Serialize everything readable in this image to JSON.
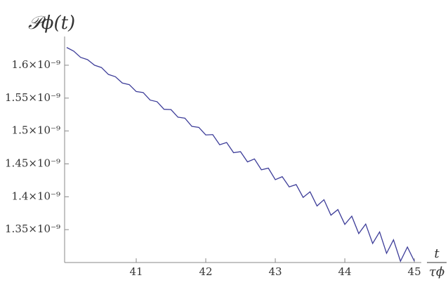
{
  "chart_data": {
    "type": "line",
    "y_label": "𝒫ϕ(t)",
    "x_label": {
      "numerator": "t",
      "denominator": "τϕ"
    },
    "x": [
      40,
      40.1,
      40.2,
      40.3,
      40.4,
      40.5,
      40.6,
      40.7,
      40.8,
      40.9,
      41,
      41.1,
      41.2,
      41.3,
      41.4,
      41.5,
      41.6,
      41.7,
      41.8,
      41.9,
      42,
      42.1,
      42.2,
      42.3,
      42.4,
      42.5,
      42.6,
      42.7,
      42.8,
      42.9,
      43,
      43.1,
      43.2,
      43.3,
      43.4,
      43.5,
      43.6,
      43.7,
      43.8,
      43.9,
      44,
      44.1,
      44.2,
      44.3,
      44.4,
      44.5,
      44.6,
      44.7,
      44.8,
      44.9,
      45
    ],
    "series": [
      {
        "color": "#3d3d99",
        "values": [
          1.627e-09,
          1.6215e-09,
          1.612e-09,
          1.6085e-09,
          1.6e-09,
          1.5965e-09,
          1.586e-09,
          1.5825e-09,
          1.573e-09,
          1.5705e-09,
          1.56e-09,
          1.5585e-09,
          1.547e-09,
          1.5445e-09,
          1.533e-09,
          1.5325e-09,
          1.521e-09,
          1.5195e-09,
          1.507e-09,
          1.5055e-09,
          1.494e-09,
          1.4945e-09,
          1.479e-09,
          1.4825e-09,
          1.467e-09,
          1.4685e-09,
          1.453e-09,
          1.4575e-09,
          1.441e-09,
          1.4435e-09,
          1.426e-09,
          1.4305e-09,
          1.415e-09,
          1.4185e-09,
          1.399e-09,
          1.4075e-09,
          1.386e-09,
          1.3955e-09,
          1.372e-09,
          1.3805e-09,
          1.358e-09,
          1.3705e-09,
          1.344e-09,
          1.3585e-09,
          1.329e-09,
          1.3465e-09,
          1.314e-09,
          1.3345e-09,
          1.302e-09,
          1.3235e-09,
          1.302e-09
        ]
      }
    ],
    "xlim": [
      39.97,
      45.1
    ],
    "ylim": [
      1.3e-09,
      1.633e-09
    ],
    "xticks": [
      41,
      42,
      43,
      44,
      45
    ],
    "yticks": [
      {
        "value": 1.35e-09,
        "label": "1.35×10⁻⁹"
      },
      {
        "value": 1.4e-09,
        "label": "1.4×10⁻⁹"
      },
      {
        "value": 1.45e-09,
        "label": "1.45×10⁻⁹"
      },
      {
        "value": 1.5e-09,
        "label": "1.5×10⁻⁹"
      },
      {
        "value": 1.55e-09,
        "label": "1.55×10⁻⁹"
      },
      {
        "value": 1.6e-09,
        "label": "1.6×10⁻⁹"
      }
    ],
    "grid": false
  }
}
